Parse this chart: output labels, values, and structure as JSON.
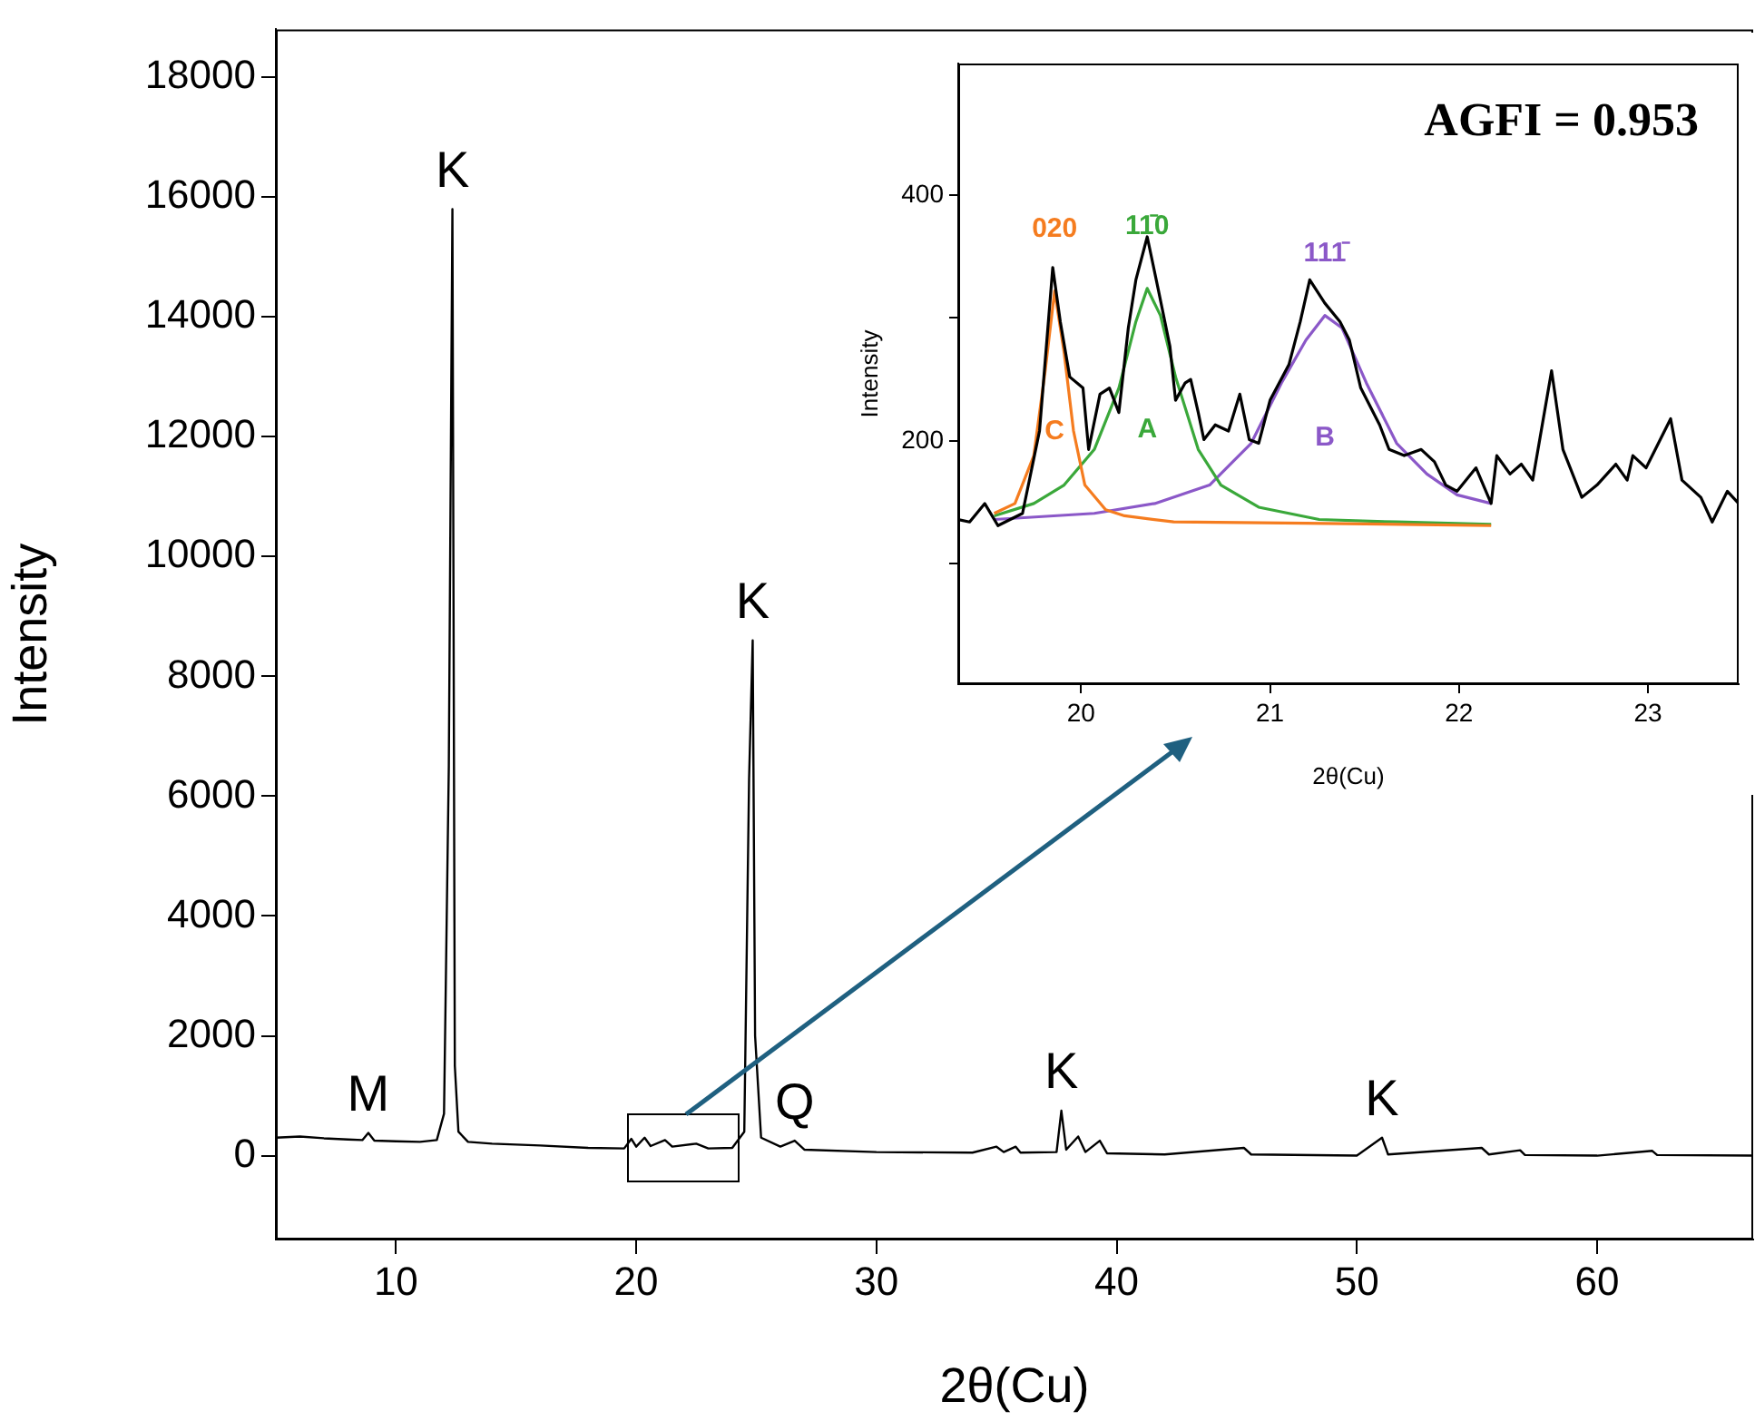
{
  "chart_data": [
    {
      "type": "line",
      "xlabel": "2θ(Cu)",
      "ylabel": "Intensity",
      "xlim": [
        5,
        66.5
      ],
      "xticks": [
        10,
        20,
        30,
        40,
        50,
        60
      ],
      "ylim": [
        -1400,
        18800
      ],
      "yticks": [
        0,
        2000,
        4000,
        6000,
        8000,
        10000,
        12000,
        14000,
        16000,
        18000
      ],
      "grid": false,
      "legend": false,
      "series": [
        {
          "color": "#000000",
          "x": [
            5,
            6,
            7,
            8,
            8.6,
            8.85,
            9.1,
            10,
            11,
            11.7,
            12.0,
            12.2,
            12.35,
            12.45,
            12.6,
            13,
            14,
            16,
            18,
            19.5,
            19.8,
            20,
            20.35,
            20.6,
            21.2,
            21.5,
            22.5,
            23,
            24,
            24.5,
            24.7,
            24.85,
            24.95,
            25.2,
            26,
            26.6,
            27,
            30,
            34,
            35,
            35.3,
            35.8,
            36,
            37.5,
            37.7,
            37.9,
            38.4,
            38.7,
            39.3,
            39.6,
            42,
            45.3,
            45.6,
            50,
            51.05,
            51.3,
            55.2,
            55.5,
            56.8,
            57,
            60,
            62.3,
            62.5,
            66.5
          ],
          "values": [
            300,
            320,
            290,
            270,
            260,
            380,
            250,
            240,
            230,
            260,
            700,
            6500,
            15800,
            1500,
            400,
            230,
            200,
            170,
            130,
            120,
            280,
            150,
            300,
            160,
            260,
            150,
            200,
            120,
            130,
            400,
            6300,
            8600,
            2000,
            300,
            150,
            250,
            100,
            60,
            50,
            150,
            60,
            150,
            50,
            60,
            750,
            100,
            320,
            60,
            250,
            40,
            20,
            130,
            20,
            0,
            300,
            20,
            130,
            20,
            90,
            10,
            0,
            80,
            10,
            0
          ]
        }
      ],
      "annotations": [
        {
          "text": "K",
          "x": 12.35,
          "y": 15800
        },
        {
          "text": "K",
          "x": 24.85,
          "y": 8600
        },
        {
          "text": "M",
          "x": 8.85,
          "y": 380
        },
        {
          "text": "Q",
          "x": 26.6,
          "y": 250
        },
        {
          "text": "K",
          "x": 37.7,
          "y": 750
        },
        {
          "text": "K",
          "x": 51.05,
          "y": 300
        }
      ]
    },
    {
      "type": "line",
      "xlabel": "2θ(Cu)",
      "ylabel": "Intensity",
      "xlim": [
        19.35,
        23.48
      ],
      "xticks": [
        20,
        21,
        22,
        23
      ],
      "ylim": [
        2,
        507
      ],
      "yticks": [
        {
          "value": 100,
          "label": null
        },
        200,
        {
          "value": 300,
          "label": null
        },
        400
      ],
      "grid": false,
      "legend": false,
      "series": [
        {
          "color": "#000000",
          "x": [
            19.35,
            19.41,
            19.49,
            19.56,
            19.69,
            19.78,
            19.85,
            19.89,
            19.94,
            20.01,
            20.04,
            20.1,
            20.15,
            20.2,
            20.25,
            20.29,
            20.35,
            20.41,
            20.47,
            20.5,
            20.55,
            20.58,
            20.62,
            20.65,
            20.71,
            20.78,
            20.84,
            20.89,
            20.94,
            21.0,
            21.1,
            21.16,
            21.21,
            21.29,
            21.37,
            21.42,
            21.48,
            21.58,
            21.63,
            21.71,
            21.8,
            21.87,
            21.93,
            21.99,
            22.09,
            22.17,
            22.2,
            22.27,
            22.33,
            22.39,
            22.49,
            22.55,
            22.65,
            22.73,
            22.83,
            22.89,
            22.92,
            22.99,
            23.12,
            23.18,
            23.28,
            23.34,
            23.42,
            23.48
          ],
          "values": [
            136,
            134,
            149,
            131,
            141,
            208,
            341,
            297,
            252,
            243,
            193,
            238,
            243,
            223,
            292,
            331,
            366,
            322,
            277,
            233,
            247,
            250,
            223,
            201,
            213,
            208,
            238,
            201,
            198,
            233,
            262,
            297,
            331,
            312,
            297,
            282,
            243,
            213,
            193,
            188,
            193,
            183,
            164,
            159,
            178,
            149,
            188,
            173,
            181,
            168,
            257,
            193,
            154,
            164,
            181,
            168,
            188,
            178,
            218,
            168,
            154,
            134,
            159,
            149
          ]
        },
        {
          "name": "C",
          "color": "#f57c1f",
          "x": [
            19.54,
            19.65,
            19.75,
            19.81,
            19.86,
            19.91,
            19.96,
            20.02,
            20.13,
            20.23,
            20.49,
            21.19,
            22.17
          ],
          "values": [
            141,
            149,
            188,
            257,
            322,
            272,
            208,
            164,
            144,
            139,
            134,
            133,
            131
          ]
        },
        {
          "name": "A",
          "color": "#3aa83a",
          "x": [
            19.54,
            19.75,
            19.91,
            20.07,
            20.2,
            20.29,
            20.35,
            20.42,
            20.5,
            20.62,
            20.74,
            20.94,
            21.26,
            21.67,
            22.17
          ],
          "values": [
            139,
            149,
            164,
            193,
            243,
            297,
            324,
            302,
            252,
            193,
            164,
            146,
            136,
            134,
            132
          ]
        },
        {
          "name": "B",
          "color": "#8b58c8",
          "x": [
            19.54,
            20.07,
            20.39,
            20.68,
            20.9,
            21.06,
            21.19,
            21.29,
            21.38,
            21.51,
            21.67,
            21.83,
            21.99,
            22.17
          ],
          "values": [
            136,
            141,
            149,
            164,
            198,
            247,
            282,
            302,
            292,
            247,
            198,
            173,
            156,
            149
          ]
        }
      ],
      "annotations": [
        "AGFI = 0.953",
        "020",
        "11̄0",
        "111̄"
      ]
    }
  ]
}
